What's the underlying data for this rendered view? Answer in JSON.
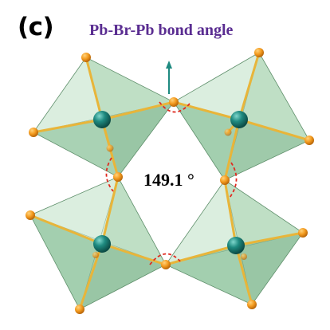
{
  "panel_label": "(c)",
  "title": "Pb-Br-Pb bond angle",
  "angle_label": "149.1 °",
  "colors": {
    "title": "#5a2d91",
    "octahedron_face_light": "#cfe8d4",
    "octahedron_face_mid": "#a9d4b2",
    "octahedron_face_dark": "#7fb88e",
    "pb_atom": "#1e8a80",
    "br_atom": "#f39a1e",
    "bond": "#e8b53a",
    "angle_marker": "#e02b20",
    "axis_arrow": "#1e8a80"
  },
  "icons": {
    "pb_atom": "teal-sphere",
    "br_atom": "orange-sphere",
    "axis_arrow": "arrow-up-icon"
  }
}
